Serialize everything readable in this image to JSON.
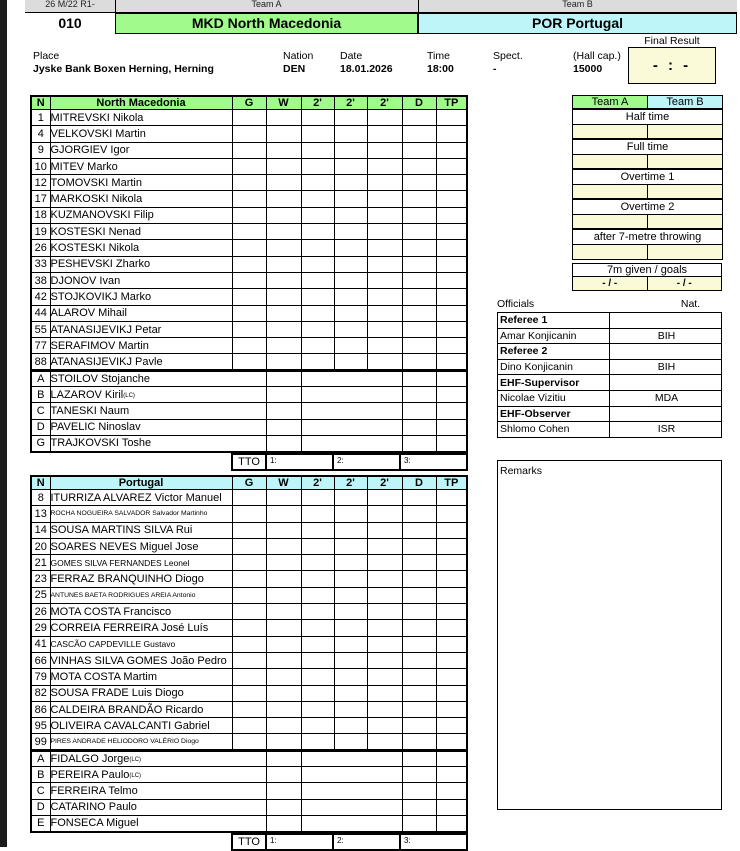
{
  "header": {
    "code": "26 M/22 R1-",
    "match_number": "010",
    "team_a_label": "Team A",
    "team_b_label": "Team B",
    "team_a_name": "MKD North Macedonia",
    "team_b_name": "POR Portugal"
  },
  "info": {
    "place_label": "Place",
    "place_value": "Jyske Bank Boxen Herning, Herning",
    "nation_label": "Nation",
    "nation_value": "DEN",
    "date_label": "Date",
    "date_value": "18.01.2026",
    "time_label": "Time",
    "time_value": "18:00",
    "spect_label": "Spect.",
    "spect_value": "-",
    "hall_label": "(Hall cap.)",
    "hall_value": "15000",
    "final_result_label": "Final Result",
    "final_result_value": "- : -"
  },
  "roster_columns": [
    "N",
    "G",
    "W",
    "2'",
    "2'",
    "2'",
    "D",
    "TP"
  ],
  "team_a": {
    "display_name": "North Macedonia",
    "players": [
      {
        "n": "1",
        "name": "MITREVSKI Nikola"
      },
      {
        "n": "4",
        "name": "VELKOVSKI Martin"
      },
      {
        "n": "9",
        "name": "GJORGIEV Igor"
      },
      {
        "n": "10",
        "name": "MITEV Marko"
      },
      {
        "n": "12",
        "name": "TOMOVSKI Martin"
      },
      {
        "n": "17",
        "name": "MARKOSKI Nikola"
      },
      {
        "n": "18",
        "name": "KUZMANOVSKI Filip"
      },
      {
        "n": "19",
        "name": "KOSTESKI Nenad"
      },
      {
        "n": "26",
        "name": "KOSTESKI Nikola"
      },
      {
        "n": "33",
        "name": "PESHEVSKI Zharko"
      },
      {
        "n": "38",
        "name": "DJONOV Ivan"
      },
      {
        "n": "42",
        "name": "STOJKOVIKJ Marko"
      },
      {
        "n": "44",
        "name": "ALAROV Mihail"
      },
      {
        "n": "55",
        "name": "ATANASIJEVIKJ Petar"
      },
      {
        "n": "77",
        "name": "SERAFIMOV Martin"
      },
      {
        "n": "88",
        "name": "ATANASIJEVIKJ Pavle"
      }
    ],
    "officials": [
      {
        "n": "A",
        "name": "STOILOV Stojanche"
      },
      {
        "n": "B",
        "name": "LAZAROV Kiril",
        "suffix": "(LC)"
      },
      {
        "n": "C",
        "name": "TANESKI Naum"
      },
      {
        "n": "D",
        "name": "PAVELIC Ninoslav"
      },
      {
        "n": "G",
        "name": "TRAJKOVSKI Toshe"
      }
    ],
    "tto_label": "TTO",
    "tto_slots": [
      "1:",
      "2:",
      "3:"
    ]
  },
  "team_b": {
    "display_name": "Portugal",
    "players": [
      {
        "n": "8",
        "name": "ITURRIZA ALVAREZ Victor Manuel"
      },
      {
        "n": "13",
        "name": "ROCHA NOGUEIRA SALVADOR Salvador Martinho",
        "size": "small"
      },
      {
        "n": "14",
        "name": "SOUSA MARTINS SILVA Rui"
      },
      {
        "n": "20",
        "name": "SOARES NEVES Miguel Jose"
      },
      {
        "n": "21",
        "name": "GOMES SILVA FERNANDES Leonel",
        "size": "mid"
      },
      {
        "n": "23",
        "name": "FERRAZ BRANQUINHO Diogo"
      },
      {
        "n": "25",
        "name": "ANTUNES BAETA RODRIGUES AREIA Antonio",
        "size": "small"
      },
      {
        "n": "26",
        "name": "MOTA COSTA Francisco"
      },
      {
        "n": "29",
        "name": "CORREIA FERREIRA José Luís"
      },
      {
        "n": "41",
        "name": "CASCÃO CAPDEVILLE Gustavo",
        "size": "mid"
      },
      {
        "n": "66",
        "name": "VINHAS SILVA GOMES João Pedro"
      },
      {
        "n": "79",
        "name": "MOTA COSTA Martim"
      },
      {
        "n": "82",
        "name": "SOUSA FRADE Luis Diogo"
      },
      {
        "n": "86",
        "name": "CALDEIRA BRANDÃO Ricardo"
      },
      {
        "n": "95",
        "name": "OLIVEIRA CAVALCANTI Gabriel"
      },
      {
        "n": "99",
        "name": "PIRES ANDRADE HELIODORO VALÉRIO Diogo",
        "size": "small"
      }
    ],
    "officials": [
      {
        "n": "A",
        "name": "FIDALGO Jorge",
        "suffix": "(LC)"
      },
      {
        "n": "B",
        "name": "PEREIRA Paulo",
        "suffix": "(LC)"
      },
      {
        "n": "C",
        "name": "FERREIRA Telmo"
      },
      {
        "n": "D",
        "name": "CATARINO Paulo"
      },
      {
        "n": "E",
        "name": "FONSECA Miguel"
      }
    ],
    "tto_label": "TTO",
    "tto_slots": [
      "1:",
      "2:",
      "3:"
    ]
  },
  "results": {
    "team_a_header": "Team A",
    "team_b_header": "Team B",
    "sections": [
      "Half time",
      "Full time",
      "Overtime 1",
      "Overtime 2",
      "after 7-metre throwing"
    ],
    "seven_m_label": "7m given / goals",
    "seven_m_a": "- / -",
    "seven_m_b": "- / -"
  },
  "officials_panel": {
    "title": "Officials",
    "nat_label": "Nat.",
    "entries": [
      {
        "role": "Referee 1",
        "name": "Amar Konjicanin",
        "nat": "BIH"
      },
      {
        "role": "Referee 2",
        "name": "Dino Konjicanin",
        "nat": "BIH"
      },
      {
        "role": "EHF-Supervisor",
        "name": "Nicolae Vizitiu",
        "nat": "MDA"
      },
      {
        "role": "EHF-Observer",
        "name": "Shlomo Cohen",
        "nat": "ISR"
      }
    ]
  },
  "remarks_label": "Remarks",
  "colors": {
    "team_a_green": "#a0fb8c",
    "team_b_cyan": "#bef5f8",
    "input_yellow": "#fafad8"
  }
}
